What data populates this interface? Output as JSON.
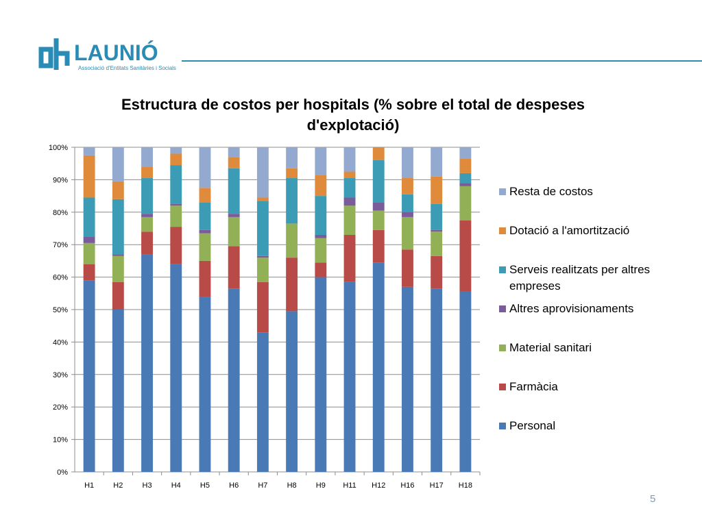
{
  "logo": {
    "brand": "LAUNIÓ",
    "subtitle": "Associació d'Entitats Sanitàries i Socials"
  },
  "page_number": "5",
  "chart_data": {
    "type": "bar",
    "stacked": true,
    "title": "Estructura de costos per hospitals (% sobre el total de despeses d'explotació)",
    "title_lines": [
      "Estructura de costos per hospitals (% sobre el total de despeses",
      "d'explotació)"
    ],
    "categories": [
      "H1",
      "H2",
      "H3",
      "H4",
      "H5",
      "H6",
      "H7",
      "H8",
      "H9",
      "H11",
      "H12",
      "H16",
      "H17",
      "H18"
    ],
    "yticks": [
      "0%",
      "10%",
      "20%",
      "30%",
      "40%",
      "50%",
      "60%",
      "70%",
      "80%",
      "90%",
      "100%"
    ],
    "ylim": [
      0,
      100
    ],
    "grid": true,
    "legend_position": "right",
    "series": [
      {
        "name": "Personal",
        "color": "#4a7ab5",
        "values": [
          59,
          50,
          67,
          64,
          54,
          56.5,
          43,
          49.5,
          60,
          58.5,
          64.5,
          57,
          56.5,
          55.5
        ]
      },
      {
        "name": "Farmàcia",
        "color": "#b84a47",
        "values": [
          5,
          8.5,
          7,
          11.5,
          11,
          13,
          15.5,
          16.5,
          4.5,
          14.5,
          10,
          11.5,
          10,
          22
        ]
      },
      {
        "name": "Material sanitari",
        "color": "#92b055",
        "values": [
          6.5,
          8,
          4.5,
          6.5,
          8.5,
          9,
          7.5,
          10.5,
          7.5,
          9,
          6,
          10,
          7.5,
          10.5
        ]
      },
      {
        "name": "Altres aprovisionaments",
        "color": "#7a5c9a",
        "values": [
          2,
          0.5,
          1,
          0.5,
          1,
          1,
          0.5,
          0,
          1,
          2.5,
          2.5,
          1.5,
          0.5,
          1
        ]
      },
      {
        "name": "Serveis realitzats per altres empreses",
        "color": "#3c9cb6",
        "values": [
          12,
          17,
          11,
          12,
          8.5,
          14,
          17,
          14,
          12,
          6,
          13,
          5.5,
          8,
          3
        ]
      },
      {
        "name": "Dotació a l'amortització",
        "color": "#e08a3c",
        "values": [
          13,
          5.5,
          3.5,
          3.5,
          4.5,
          3.5,
          1,
          3,
          6.5,
          2,
          4,
          5,
          8.5,
          4.5
        ]
      },
      {
        "name": "Resta de costos",
        "color": "#93a9d0",
        "values": [
          2.5,
          10.5,
          6,
          2,
          12.5,
          3,
          15.5,
          6.5,
          8.5,
          7.5,
          0,
          9.5,
          9,
          3.5
        ]
      }
    ]
  }
}
